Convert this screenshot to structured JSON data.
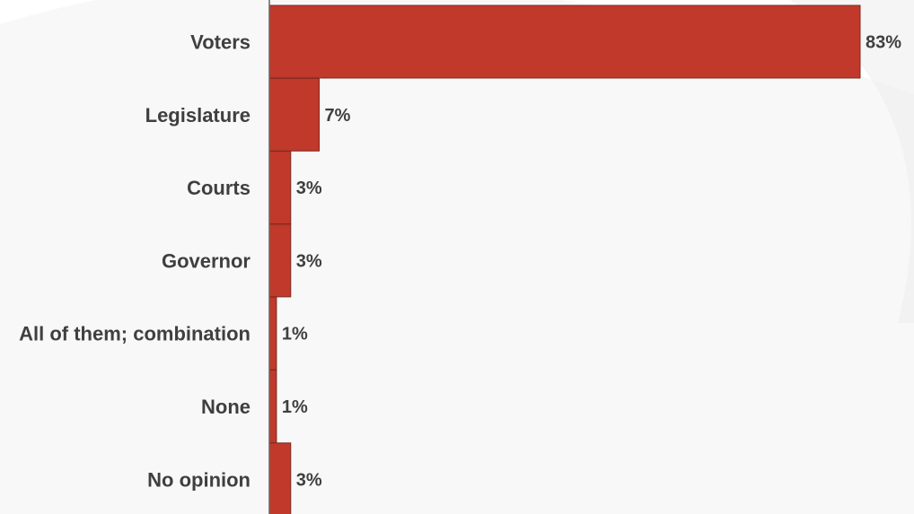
{
  "chart_data": {
    "type": "bar",
    "orientation": "horizontal",
    "categories": [
      "Voters",
      "Legislature",
      "Courts",
      "Governor",
      "All of them; combination",
      "None",
      "No opinion"
    ],
    "values": [
      83,
      7,
      3,
      3,
      1,
      1,
      3
    ],
    "value_labels": [
      "83%",
      "7%",
      "3%",
      "3%",
      "1%",
      "1%",
      "3%"
    ],
    "xlim": [
      0,
      83
    ],
    "grid": false,
    "legend": "none",
    "colors": {
      "bar_fill": "#c0392b",
      "bar_stroke": "#7a2a22",
      "axis": "#666666",
      "text": "#3f3f3f",
      "background_shape": "#f2f2f2"
    }
  }
}
